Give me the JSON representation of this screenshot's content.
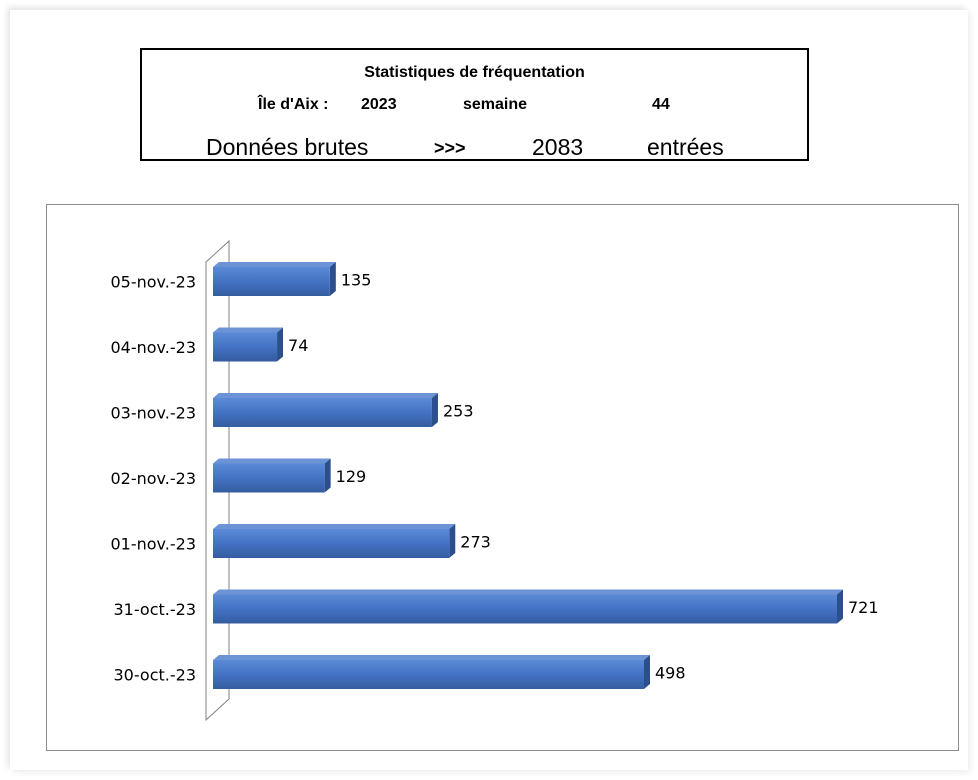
{
  "header": {
    "title": "Statistiques de  fréquentation",
    "location_label": "Île d'Aix :",
    "year": "2023",
    "week_label": "semaine",
    "week_number": "44",
    "raw_data_label": "Données brutes",
    "arrows": ">>>",
    "total": "2083",
    "entries_label": "entrées"
  },
  "chart_data": {
    "type": "bar",
    "orientation": "horizontal",
    "categories": [
      "05-nov.-23",
      "04-nov.-23",
      "03-nov.-23",
      "02-nov.-23",
      "01-nov.-23",
      "31-oct.-23",
      "30-oct.-23"
    ],
    "values": [
      135,
      74,
      253,
      129,
      273,
      721,
      498
    ],
    "data_labels": [
      "135",
      "74",
      "253",
      "129",
      "273",
      "721",
      "498"
    ],
    "xlim": [
      0,
      721
    ],
    "grid": false,
    "legend": "none",
    "bar_color": "#4472c4"
  }
}
